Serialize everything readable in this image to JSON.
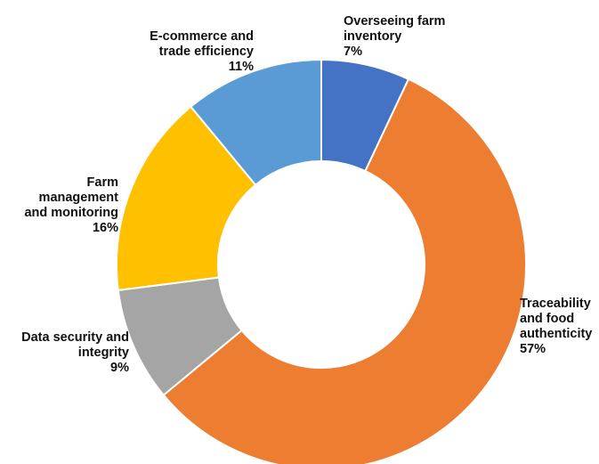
{
  "chart_data": {
    "type": "pie",
    "donut": true,
    "slices": [
      {
        "label_lines": [
          "Overseeing farm",
          "inventory"
        ],
        "percent_label": "7%",
        "value": 7,
        "color": "#4472C4"
      },
      {
        "label_lines": [
          "Traceability",
          "and food",
          "authenticity"
        ],
        "percent_label": "57%",
        "value": 57,
        "color": "#ED7D31"
      },
      {
        "label_lines": [
          "Data security and",
          "integrity"
        ],
        "percent_label": "9%",
        "value": 9,
        "color": "#A5A5A5"
      },
      {
        "label_lines": [
          "Farm",
          "management",
          "and monitoring"
        ],
        "percent_label": "16%",
        "value": 16,
        "color": "#FFC000"
      },
      {
        "label_lines": [
          "E-commerce and",
          "trade efficiency"
        ],
        "percent_label": "11%",
        "value": 11,
        "color": "#5B9BD5"
      }
    ]
  }
}
